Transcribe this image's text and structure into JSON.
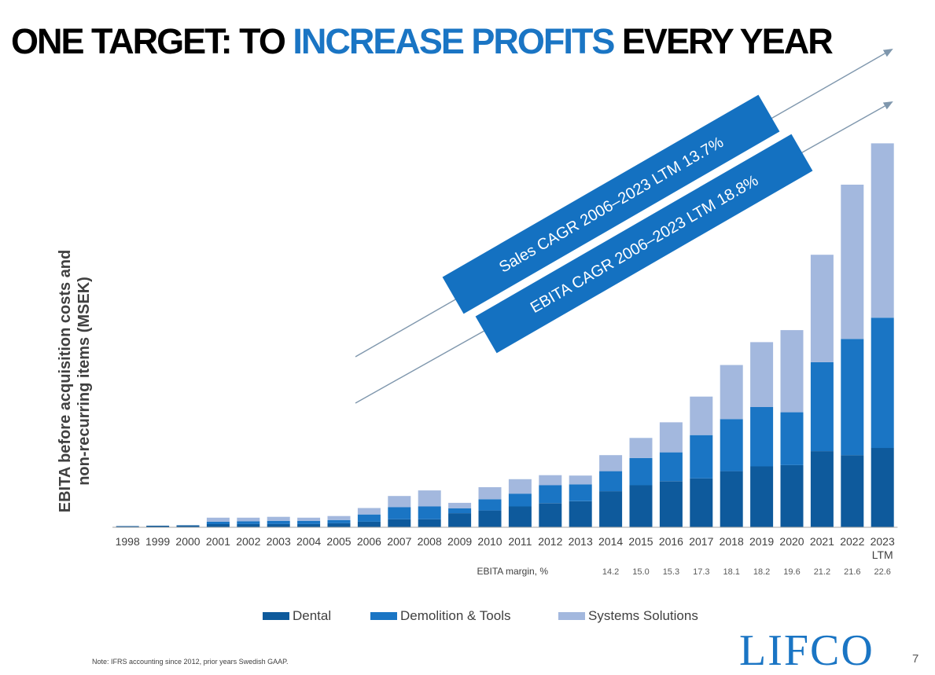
{
  "title": {
    "part1": "ONE TARGET: TO ",
    "part2": "INCREASE PROFITS",
    "part3": " EVERY YEAR"
  },
  "colors": {
    "dental": "#0e5a9c",
    "demolition": "#1a75c4",
    "systems": "#a3b8de",
    "banner": "#1471c1",
    "arrow": "#7f97ad"
  },
  "chart_data": {
    "type": "bar",
    "stacked": true,
    "categories": [
      "1998",
      "1999",
      "2000",
      "2001",
      "2002",
      "2003",
      "2004",
      "2005",
      "2006",
      "2007",
      "2008",
      "2009",
      "2010",
      "2011",
      "2012",
      "2013",
      "2014",
      "2015",
      "2016",
      "2017",
      "2018",
      "2019",
      "2020",
      "2021",
      "2022",
      "2023\nLTM"
    ],
    "series": [
      {
        "name": "Dental",
        "values": [
          3,
          4,
          5,
          8,
          8,
          8,
          8,
          10,
          14,
          20,
          20,
          35,
          42,
          52,
          60,
          65,
          90,
          105,
          115,
          122,
          140,
          152,
          155,
          190,
          180,
          198
        ]
      },
      {
        "name": "Demolition & Tools",
        "values": [
          0,
          0,
          0,
          6,
          7,
          8,
          8,
          8,
          18,
          30,
          32,
          12,
          28,
          32,
          45,
          42,
          50,
          68,
          72,
          108,
          130,
          148,
          132,
          222,
          290,
          325
        ]
      },
      {
        "name": "Systems Solutions",
        "values": [
          0,
          0,
          0,
          10,
          9,
          10,
          8,
          10,
          16,
          28,
          40,
          14,
          30,
          36,
          25,
          22,
          40,
          50,
          75,
          96,
          135,
          162,
          205,
          268,
          385,
          435
        ]
      }
    ],
    "ylabel": "EBITA before acquisition costs and non-recurring items (MSEK)",
    "xlabel": "",
    "ylim": [
      0,
      1000
    ],
    "grid": false,
    "legend": "bottom",
    "margin": {
      "label": "EBITA margin, %",
      "years": [
        "2014",
        "2015",
        "2016",
        "2017",
        "2018",
        "2019",
        "2020",
        "2021",
        "2022",
        "2023\nLTM"
      ],
      "values": [
        "14.2",
        "15.0",
        "15.3",
        "17.3",
        "18.1",
        "18.2",
        "19.6",
        "21.2",
        "21.6",
        "22.6"
      ]
    },
    "banners": [
      "Sales CAGR 2006–2023 LTM 13.7%",
      "EBITA CAGR 2006–2023 LTM 18.8%"
    ]
  },
  "legend": [
    "Dental",
    "Demolition & Tools",
    "Systems Solutions"
  ],
  "note": "Note: IFRS accounting since 2012, prior years Swedish GAAP.",
  "logo": "LIFCO",
  "page_number": "7"
}
